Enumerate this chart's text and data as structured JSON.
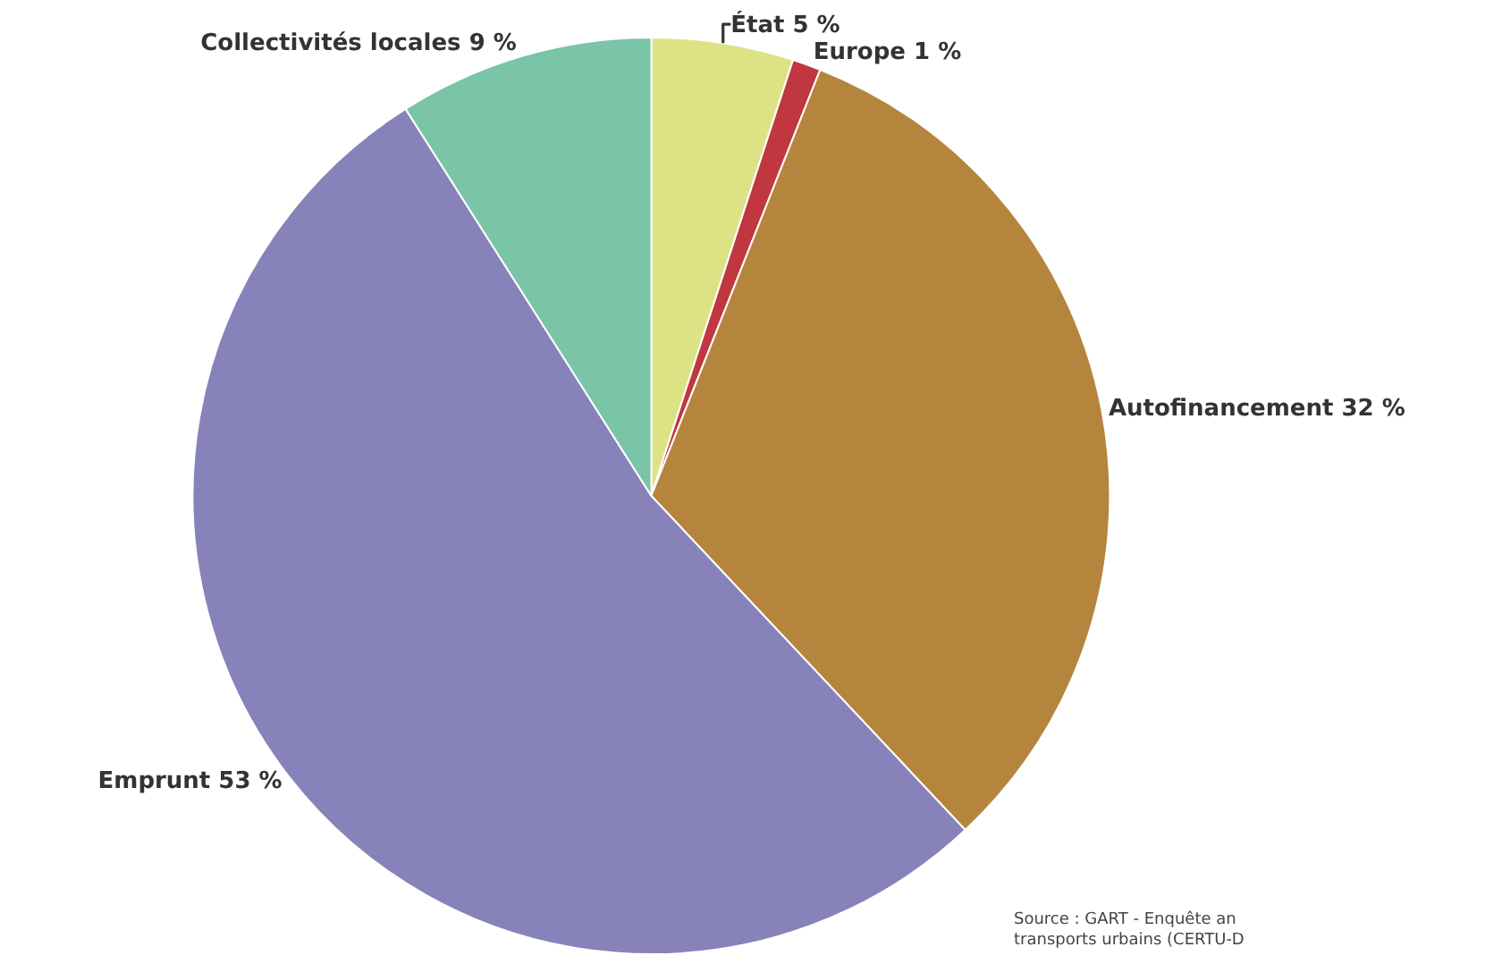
{
  "chart_data": {
    "type": "pie",
    "categories": [
      "État",
      "Europe",
      "Autofinancement",
      "Emprunt",
      "Collectivités locales"
    ],
    "values": [
      5,
      1,
      32,
      53,
      9
    ],
    "value_labels": [
      "5 %",
      "1 %",
      "32 %",
      "53 %",
      "9 %"
    ],
    "colors": [
      "#dde384",
      "#c0373f",
      "#b5853e",
      "#8882ba",
      "#7ac4a8"
    ],
    "annotations": [
      "Source : GART - Enquête an",
      "transports urbains (CERTU-D"
    ],
    "legend": false
  }
}
